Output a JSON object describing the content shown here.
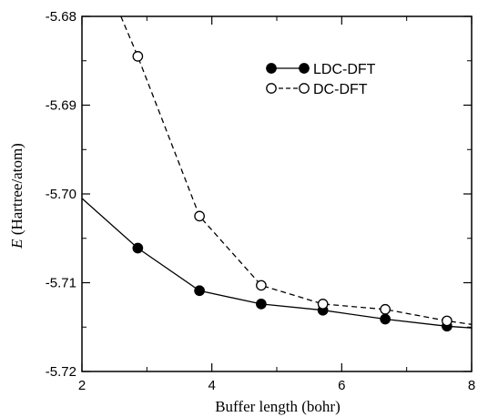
{
  "chart_data": {
    "type": "line",
    "xlabel": "Buffer length (bohr)",
    "ylabel_italic": "E",
    "ylabel_rest": " (Hartree/atom)",
    "xlim": [
      2,
      8
    ],
    "ylim": [
      -5.72,
      -5.68
    ],
    "xticks": [
      2,
      4,
      6,
      8
    ],
    "yticks": [
      -5.72,
      -5.71,
      -5.7,
      -5.69,
      -5.68
    ],
    "ytick_labels": [
      "-5.72",
      "-5.71",
      "-5.70",
      "-5.69",
      "-5.68"
    ],
    "xtick_labels": [
      "2",
      "4",
      "6",
      "8"
    ],
    "minor_xticks": true,
    "minor_yticks": true,
    "grid": false,
    "legend_position": "top-right",
    "series": [
      {
        "name": "LDC-DFT",
        "line_style": "solid",
        "marker": "filled-circle",
        "line_extends_to": [
          [
            2.0,
            -5.7005
          ],
          [
            8.0,
            -5.7151
          ]
        ],
        "x": [
          2.86,
          3.81,
          4.76,
          5.71,
          6.67,
          7.62
        ],
        "y": [
          -5.7061,
          -5.7109,
          -5.7124,
          -5.7131,
          -5.7141,
          -5.7149
        ]
      },
      {
        "name": "DC-DFT",
        "line_style": "dashed",
        "marker": "open-circle",
        "line_extends_to": [
          [
            2.6,
            -5.68
          ],
          [
            8.0,
            -5.7147
          ]
        ],
        "x": [
          2.86,
          3.81,
          4.76,
          5.71,
          6.67,
          7.62
        ],
        "y": [
          -5.6845,
          -5.7025,
          -5.7103,
          -5.7124,
          -5.713,
          -5.7143
        ]
      }
    ],
    "colors": {
      "line": "#000000",
      "background": "#ffffff"
    }
  }
}
